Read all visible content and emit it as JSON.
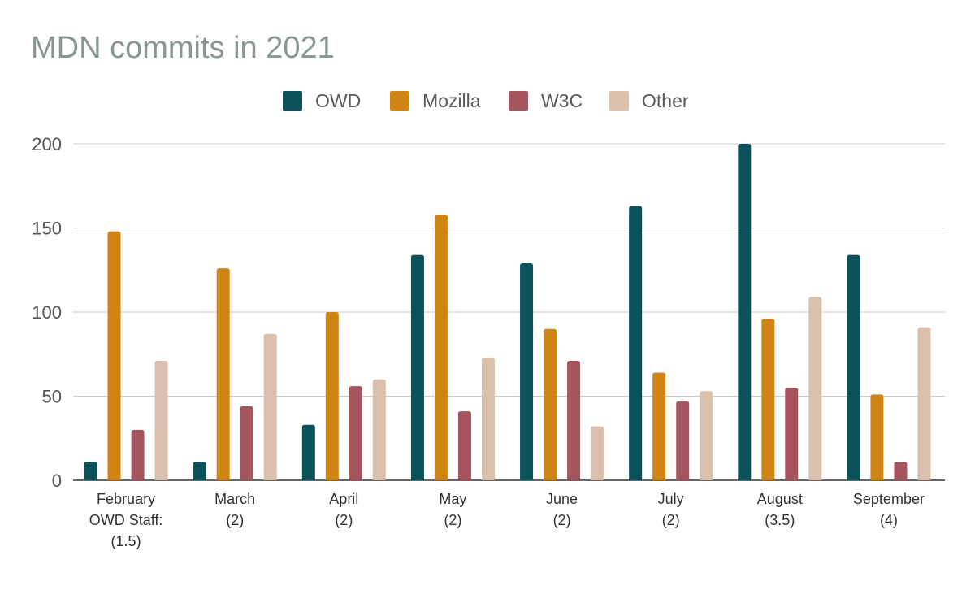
{
  "chart_data": {
    "type": "bar",
    "title": "MDN commits in 2021",
    "categories": [
      [
        "February",
        "OWD Staff:",
        "(1.5)"
      ],
      [
        "March",
        "(2)"
      ],
      [
        "April",
        "(2)"
      ],
      [
        "May",
        "(2)"
      ],
      [
        "June",
        "(2)"
      ],
      [
        "July",
        "(2)"
      ],
      [
        "August",
        "(3.5)"
      ],
      [
        "September",
        "(4)"
      ]
    ],
    "series": [
      {
        "name": "OWD",
        "color": "#0b525b",
        "values": [
          11,
          11,
          33,
          134,
          129,
          163,
          200,
          134
        ]
      },
      {
        "name": "Mozilla",
        "color": "#d08414",
        "values": [
          148,
          126,
          100,
          158,
          90,
          64,
          96,
          51
        ]
      },
      {
        "name": "W3C",
        "color": "#a6545e",
        "values": [
          30,
          44,
          56,
          41,
          71,
          47,
          55,
          11
        ]
      },
      {
        "name": "Other",
        "color": "#dbc0ae",
        "values": [
          71,
          87,
          60,
          73,
          32,
          53,
          109,
          91
        ]
      }
    ],
    "ylim": [
      0,
      200
    ],
    "yticks": [
      "0",
      "50",
      "100",
      "150",
      "200"
    ],
    "grid": true,
    "legend_position": "top-center",
    "xlabel": "",
    "ylabel": ""
  }
}
